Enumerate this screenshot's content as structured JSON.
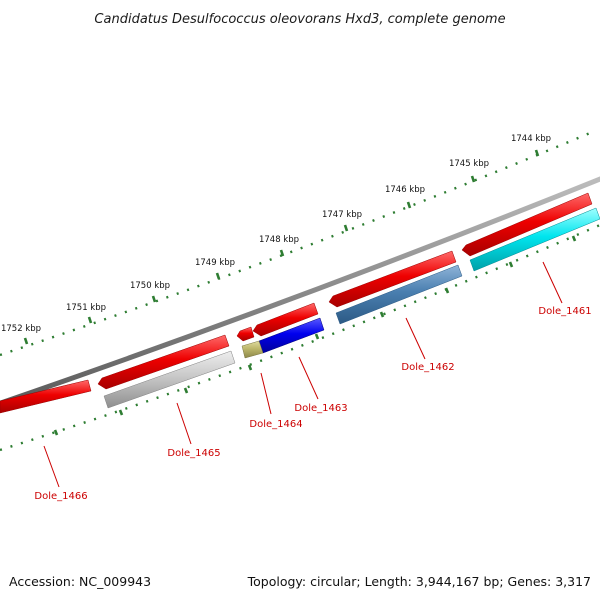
{
  "title": "Candidatus Desulfococcus oleovorans Hxd3, complete genome",
  "footer": {
    "accession": "Accession: NC_009943",
    "summary": "Topology: circular; Length: 3,944,167 bp; Genes: 3,317"
  },
  "colors": {
    "backbone": "#8a8a8a",
    "ruler": "#2e7d32",
    "label": "#cc0000",
    "forward_cds": "#ee0000",
    "dole_1461": "#00e5ee",
    "dole_1462": "#4a7fb0",
    "dole_1463": "#0000ee",
    "dole_1464": "#bdb76b",
    "dole_1465": "#c8c8c8"
  },
  "ruler_labels": [
    "1744 kbp",
    "1745 kbp",
    "1746 kbp",
    "1747 kbp",
    "1748 kbp",
    "1749 kbp",
    "1750 kbp",
    "1751 kbp",
    "1752 kbp"
  ],
  "gene_labels": [
    "Dole_1461",
    "Dole_1462",
    "Dole_1463",
    "Dole_1464",
    "Dole_1465",
    "Dole_1466"
  ]
}
